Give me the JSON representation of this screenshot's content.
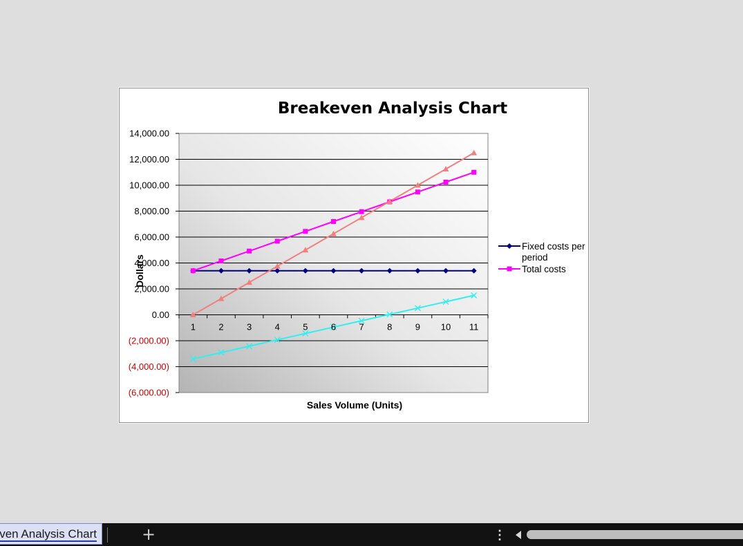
{
  "chart_data": {
    "type": "line",
    "title": "Breakeven Analysis Chart",
    "xlabel": "Sales Volume (Units)",
    "ylabel": "Dollars",
    "categories": [
      "1",
      "2",
      "3",
      "4",
      "5",
      "6",
      "7",
      "8",
      "9",
      "10",
      "11"
    ],
    "ylim": [
      -6000,
      14000
    ],
    "y_ticks": [
      14000,
      12000,
      10000,
      8000,
      6000,
      4000,
      2000,
      0,
      -2000,
      -4000,
      -6000
    ],
    "y_tick_labels": [
      "14,000.00",
      "12,000.00",
      "10,000.00",
      "8,000.00",
      "6,000.00",
      "4,000.00",
      "2,000.00",
      "0.00",
      "(2,000.00)",
      "(4,000.00)",
      "(6,000.00)"
    ],
    "negative_label_color": "#cc0000",
    "grid": "horizontal",
    "legend_position": "right",
    "series": [
      {
        "name": "Fixed costs per period",
        "color": "#000080",
        "marker": "diamond",
        "values": [
          3400,
          3400,
          3400,
          3400,
          3400,
          3400,
          3400,
          3400,
          3400,
          3400,
          3400
        ]
      },
      {
        "name": "Total costs",
        "color": "#ff00ff",
        "marker": "square",
        "values": [
          3400,
          4160,
          4920,
          5680,
          6440,
          7200,
          7960,
          8720,
          9480,
          10240,
          11000
        ]
      },
      {
        "name": "",
        "color": "#f08080",
        "marker": "triangle",
        "values": [
          0,
          1250,
          2500,
          3750,
          5000,
          6250,
          7500,
          8750,
          10000,
          11250,
          12500
        ]
      },
      {
        "name": "",
        "color": "#33eeee",
        "marker": "x",
        "values": [
          -3400,
          -2910,
          -2420,
          -1930,
          -1440,
          -950,
          -460,
          30,
          520,
          1010,
          1500
        ]
      }
    ]
  },
  "sheet_tabs": {
    "active_label": "Breakeven Analysis Chart",
    "add_label": "+",
    "more_label": "⋮"
  }
}
